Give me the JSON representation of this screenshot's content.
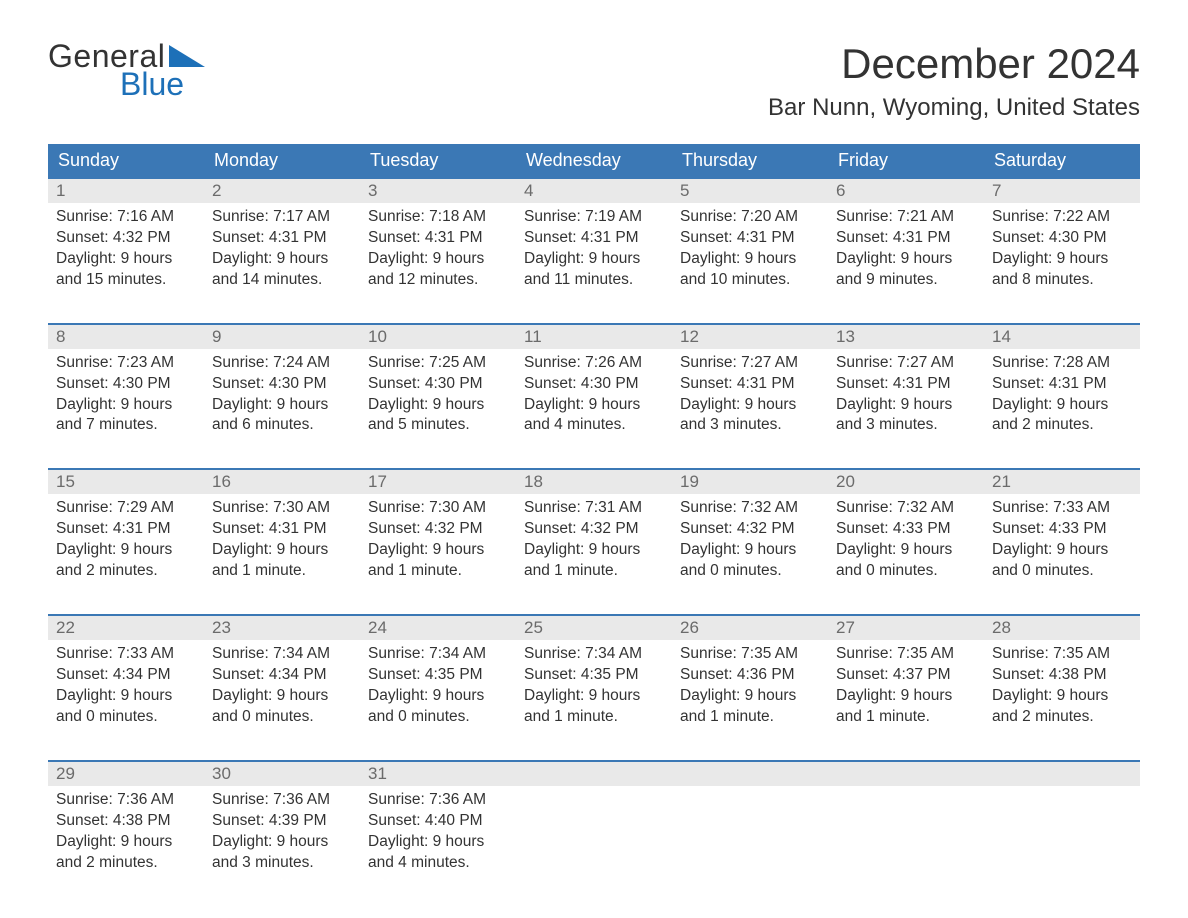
{
  "brand": {
    "line1": "General",
    "line2": "Blue"
  },
  "colors": {
    "brand_blue": "#1d70b8",
    "header_blue": "#3b78b5",
    "row_gray": "#e9e9e9",
    "text": "#333333",
    "muted": "#6b6b6b",
    "background": "#ffffff"
  },
  "title": "December 2024",
  "location": "Bar Nunn, Wyoming, United States",
  "weekdays": [
    "Sunday",
    "Monday",
    "Tuesday",
    "Wednesday",
    "Thursday",
    "Friday",
    "Saturday"
  ],
  "weeks": [
    [
      {
        "day": "1",
        "sunrise": "Sunrise: 7:16 AM",
        "sunset": "Sunset: 4:32 PM",
        "d1": "Daylight: 9 hours",
        "d2": "and 15 minutes."
      },
      {
        "day": "2",
        "sunrise": "Sunrise: 7:17 AM",
        "sunset": "Sunset: 4:31 PM",
        "d1": "Daylight: 9 hours",
        "d2": "and 14 minutes."
      },
      {
        "day": "3",
        "sunrise": "Sunrise: 7:18 AM",
        "sunset": "Sunset: 4:31 PM",
        "d1": "Daylight: 9 hours",
        "d2": "and 12 minutes."
      },
      {
        "day": "4",
        "sunrise": "Sunrise: 7:19 AM",
        "sunset": "Sunset: 4:31 PM",
        "d1": "Daylight: 9 hours",
        "d2": "and 11 minutes."
      },
      {
        "day": "5",
        "sunrise": "Sunrise: 7:20 AM",
        "sunset": "Sunset: 4:31 PM",
        "d1": "Daylight: 9 hours",
        "d2": "and 10 minutes."
      },
      {
        "day": "6",
        "sunrise": "Sunrise: 7:21 AM",
        "sunset": "Sunset: 4:31 PM",
        "d1": "Daylight: 9 hours",
        "d2": "and 9 minutes."
      },
      {
        "day": "7",
        "sunrise": "Sunrise: 7:22 AM",
        "sunset": "Sunset: 4:30 PM",
        "d1": "Daylight: 9 hours",
        "d2": "and 8 minutes."
      }
    ],
    [
      {
        "day": "8",
        "sunrise": "Sunrise: 7:23 AM",
        "sunset": "Sunset: 4:30 PM",
        "d1": "Daylight: 9 hours",
        "d2": "and 7 minutes."
      },
      {
        "day": "9",
        "sunrise": "Sunrise: 7:24 AM",
        "sunset": "Sunset: 4:30 PM",
        "d1": "Daylight: 9 hours",
        "d2": "and 6 minutes."
      },
      {
        "day": "10",
        "sunrise": "Sunrise: 7:25 AM",
        "sunset": "Sunset: 4:30 PM",
        "d1": "Daylight: 9 hours",
        "d2": "and 5 minutes."
      },
      {
        "day": "11",
        "sunrise": "Sunrise: 7:26 AM",
        "sunset": "Sunset: 4:30 PM",
        "d1": "Daylight: 9 hours",
        "d2": "and 4 minutes."
      },
      {
        "day": "12",
        "sunrise": "Sunrise: 7:27 AM",
        "sunset": "Sunset: 4:31 PM",
        "d1": "Daylight: 9 hours",
        "d2": "and 3 minutes."
      },
      {
        "day": "13",
        "sunrise": "Sunrise: 7:27 AM",
        "sunset": "Sunset: 4:31 PM",
        "d1": "Daylight: 9 hours",
        "d2": "and 3 minutes."
      },
      {
        "day": "14",
        "sunrise": "Sunrise: 7:28 AM",
        "sunset": "Sunset: 4:31 PM",
        "d1": "Daylight: 9 hours",
        "d2": "and 2 minutes."
      }
    ],
    [
      {
        "day": "15",
        "sunrise": "Sunrise: 7:29 AM",
        "sunset": "Sunset: 4:31 PM",
        "d1": "Daylight: 9 hours",
        "d2": "and 2 minutes."
      },
      {
        "day": "16",
        "sunrise": "Sunrise: 7:30 AM",
        "sunset": "Sunset: 4:31 PM",
        "d1": "Daylight: 9 hours",
        "d2": "and 1 minute."
      },
      {
        "day": "17",
        "sunrise": "Sunrise: 7:30 AM",
        "sunset": "Sunset: 4:32 PM",
        "d1": "Daylight: 9 hours",
        "d2": "and 1 minute."
      },
      {
        "day": "18",
        "sunrise": "Sunrise: 7:31 AM",
        "sunset": "Sunset: 4:32 PM",
        "d1": "Daylight: 9 hours",
        "d2": "and 1 minute."
      },
      {
        "day": "19",
        "sunrise": "Sunrise: 7:32 AM",
        "sunset": "Sunset: 4:32 PM",
        "d1": "Daylight: 9 hours",
        "d2": "and 0 minutes."
      },
      {
        "day": "20",
        "sunrise": "Sunrise: 7:32 AM",
        "sunset": "Sunset: 4:33 PM",
        "d1": "Daylight: 9 hours",
        "d2": "and 0 minutes."
      },
      {
        "day": "21",
        "sunrise": "Sunrise: 7:33 AM",
        "sunset": "Sunset: 4:33 PM",
        "d1": "Daylight: 9 hours",
        "d2": "and 0 minutes."
      }
    ],
    [
      {
        "day": "22",
        "sunrise": "Sunrise: 7:33 AM",
        "sunset": "Sunset: 4:34 PM",
        "d1": "Daylight: 9 hours",
        "d2": "and 0 minutes."
      },
      {
        "day": "23",
        "sunrise": "Sunrise: 7:34 AM",
        "sunset": "Sunset: 4:34 PM",
        "d1": "Daylight: 9 hours",
        "d2": "and 0 minutes."
      },
      {
        "day": "24",
        "sunrise": "Sunrise: 7:34 AM",
        "sunset": "Sunset: 4:35 PM",
        "d1": "Daylight: 9 hours",
        "d2": "and 0 minutes."
      },
      {
        "day": "25",
        "sunrise": "Sunrise: 7:34 AM",
        "sunset": "Sunset: 4:35 PM",
        "d1": "Daylight: 9 hours",
        "d2": "and 1 minute."
      },
      {
        "day": "26",
        "sunrise": "Sunrise: 7:35 AM",
        "sunset": "Sunset: 4:36 PM",
        "d1": "Daylight: 9 hours",
        "d2": "and 1 minute."
      },
      {
        "day": "27",
        "sunrise": "Sunrise: 7:35 AM",
        "sunset": "Sunset: 4:37 PM",
        "d1": "Daylight: 9 hours",
        "d2": "and 1 minute."
      },
      {
        "day": "28",
        "sunrise": "Sunrise: 7:35 AM",
        "sunset": "Sunset: 4:38 PM",
        "d1": "Daylight: 9 hours",
        "d2": "and 2 minutes."
      }
    ],
    [
      {
        "day": "29",
        "sunrise": "Sunrise: 7:36 AM",
        "sunset": "Sunset: 4:38 PM",
        "d1": "Daylight: 9 hours",
        "d2": "and 2 minutes."
      },
      {
        "day": "30",
        "sunrise": "Sunrise: 7:36 AM",
        "sunset": "Sunset: 4:39 PM",
        "d1": "Daylight: 9 hours",
        "d2": "and 3 minutes."
      },
      {
        "day": "31",
        "sunrise": "Sunrise: 7:36 AM",
        "sunset": "Sunset: 4:40 PM",
        "d1": "Daylight: 9 hours",
        "d2": "and 4 minutes."
      },
      {
        "day": "",
        "sunrise": "",
        "sunset": "",
        "d1": "",
        "d2": ""
      },
      {
        "day": "",
        "sunrise": "",
        "sunset": "",
        "d1": "",
        "d2": ""
      },
      {
        "day": "",
        "sunrise": "",
        "sunset": "",
        "d1": "",
        "d2": ""
      },
      {
        "day": "",
        "sunrise": "",
        "sunset": "",
        "d1": "",
        "d2": ""
      }
    ]
  ]
}
